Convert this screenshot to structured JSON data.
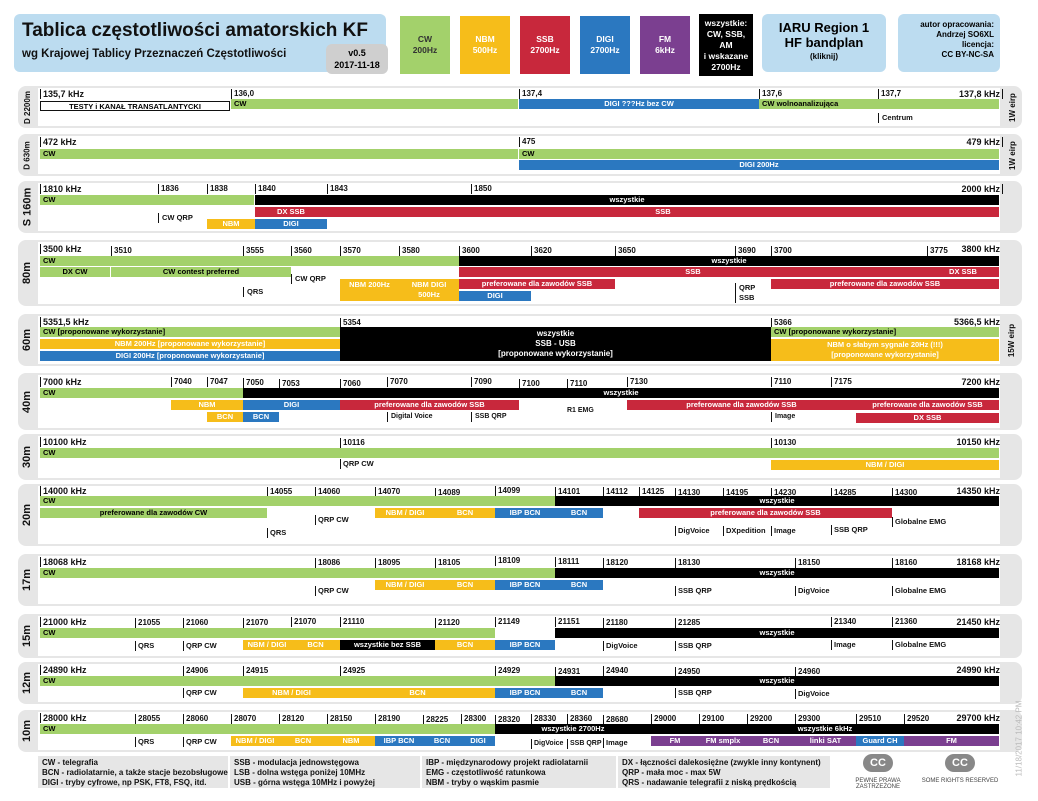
{
  "header": {
    "title": "Tablica częstotliwości amatorskich KF",
    "subtitle": "wg Krajowej Tablicy Przeznaczeń Częstotliwości",
    "version": "v0.5",
    "date": "2017-11-18",
    "legend": [
      {
        "label": "CW",
        "sub": "200Hz",
        "color": "#a3d16b",
        "dark": true
      },
      {
        "label": "NBM",
        "sub": "500Hz",
        "color": "#f6bd1a",
        "dark": false
      },
      {
        "label": "SSB",
        "sub": "2700Hz",
        "color": "#c8283c",
        "dark": false
      },
      {
        "label": "DIGI",
        "sub": "2700Hz",
        "color": "#2b78c0",
        "dark": false
      },
      {
        "label": "FM",
        "sub": "6kHz",
        "color": "#7b3f90",
        "dark": false
      },
      {
        "label": "wszystkie: CW, SSB, AM",
        "sub": "i wskazane 2700Hz",
        "color": "#000000",
        "dark": false
      }
    ],
    "iaru": {
      "line1": "IARU Region 1",
      "line2": "HF bandplan",
      "link": "(kliknij)"
    },
    "author": [
      "autor opracowania:",
      "Andrzej SO6XL",
      "licencja:",
      "CC BY-NC-SA"
    ]
  },
  "colors": {
    "cw": "#a3d16b",
    "nbm": "#f6bd1a",
    "ssb": "#c8283c",
    "digi": "#2b78c0",
    "fm": "#7b3f90",
    "all": "#000000",
    "band_bg": "#e6e6e6"
  },
  "chart_data": {
    "type": "table",
    "bands": [
      {
        "name": "D 2200m",
        "side": "1W eirp",
        "edges": {
          "start": "135,7 kHz",
          "end": "137,8 kHz"
        },
        "marks": [
          "136,0",
          "137,4",
          "137,6",
          "137,7"
        ],
        "segments": [
          "TESTY i KANAŁ TRANSATLANTYCKI",
          "CW",
          "DIGI ???Hz bez CW",
          "CW wolnoanalizująca",
          "Centrum"
        ]
      },
      {
        "name": "D 630m",
        "side": "1W eirp",
        "edges": {
          "start": "472 kHz",
          "end": "479 kHz"
        },
        "marks": [
          "475"
        ],
        "segments": [
          "CW",
          "CW",
          "DIGI 200Hz"
        ]
      },
      {
        "name": "S 160m",
        "edges": {
          "start": "1810 kHz",
          "end": "2000 kHz"
        },
        "marks": [
          "1836",
          "1838",
          "1840",
          "1843",
          "1850"
        ],
        "segments": [
          "CW",
          "wszystkie",
          "DX SSB",
          "SSB",
          "CW QRP",
          "NBM",
          "DIGI"
        ]
      },
      {
        "name": "80m",
        "edges": {
          "start": "3500 kHz",
          "end": "3800 kHz"
        },
        "marks": [
          "3510",
          "3555",
          "3560",
          "3570",
          "3580",
          "3600",
          "3620",
          "3650",
          "3690",
          "3700",
          "3775"
        ],
        "segments": [
          "CW",
          "wszystkie",
          "DX CW",
          "CW contest preferred",
          "SSB",
          "DX SSB",
          "CW QRP",
          "NBM 200Hz",
          "NBM DIGI 500Hz",
          "preferowane dla zawodów SSB",
          "QRP SSB",
          "preferowane dla zawodów SSB",
          "QRS",
          "DIGI"
        ]
      },
      {
        "name": "60m",
        "side": "15W eirp",
        "edges": {
          "start": "5351,5 kHz",
          "end": "5366,5 kHz"
        },
        "marks": [
          "5354",
          "5366"
        ],
        "segments": [
          "CW [proponowane wykorzystanie]",
          "NBM 200Hz [proponowane wykorzystanie]",
          "DIGI 200Hz [proponowane wykorzystanie]",
          "wszystkie",
          "SSB - USB",
          "[proponowane wykorzystanie]",
          "CW [proponowane wykorzystanie]",
          "NBM o słabym sygnale 20Hz (!!!)",
          "[proponowane wykorzystanie]"
        ]
      },
      {
        "name": "40m",
        "edges": {
          "start": "7000 kHz",
          "end": "7200 kHz"
        },
        "marks": [
          "7040",
          "7047",
          "7050",
          "7053",
          "7060",
          "7070",
          "7090",
          "7100",
          "7110",
          "7130",
          "7110",
          "7175"
        ],
        "segments": [
          "CW",
          "wszystkie",
          "NBM",
          "DIGI",
          "preferowane dla zawodów SSB",
          "preferowane dla zawodów SSB",
          "preferowane dla zawodów SSB",
          "BCN",
          "BCN",
          "Digital Voice",
          "SSB QRP",
          "R1 EMG",
          "Image",
          "DX SSB"
        ]
      },
      {
        "name": "30m",
        "edges": {
          "start": "10100 kHz",
          "end": "10150 kHz"
        },
        "marks": [
          "10116",
          "10130"
        ],
        "segments": [
          "CW",
          "QRP CW",
          "NBM / DIGI"
        ]
      },
      {
        "name": "20m",
        "edges": {
          "start": "14000 kHz",
          "end": "14350 kHz"
        },
        "marks": [
          "14055",
          "14060",
          "14070",
          "14089",
          "14099",
          "14101",
          "14112",
          "14125",
          "14130",
          "14195",
          "14230",
          "14285",
          "14300"
        ],
        "segments": [
          "CW",
          "wszystkie",
          "preferowane dla zawodów CW",
          "QRP CW",
          "NBM / DIGI",
          "BCN",
          "IBP BCN",
          "BCN",
          "preferowane dla zawodów SSB",
          "Globalne EMG",
          "QRS",
          "DigVoice",
          "DXpedition",
          "Image",
          "SSB QRP"
        ]
      },
      {
        "name": "17m",
        "edges": {
          "start": "18068 kHz",
          "end": "18168 kHz"
        },
        "marks": [
          "18086",
          "18095",
          "18105",
          "18109",
          "18111",
          "18120",
          "18130",
          "18150",
          "18160"
        ],
        "segments": [
          "CW",
          "wszystkie",
          "QRP CW",
          "NBM / DIGI",
          "BCN",
          "IBP BCN",
          "BCN",
          "SSB QRP",
          "DigVoice",
          "Globalne EMG"
        ]
      },
      {
        "name": "15m",
        "edges": {
          "start": "21000 kHz",
          "end": "21450 kHz"
        },
        "marks": [
          "21055",
          "21060",
          "21070",
          "21070",
          "21110",
          "21120",
          "21149",
          "21151",
          "21180",
          "21285",
          "21340",
          "21360"
        ],
        "segments": [
          "CW",
          "wszystkie",
          "QRS",
          "QRP CW",
          "NBM / DIGI",
          "BCN",
          "wszystkie bez SSB",
          "BCN",
          "IBP BCN",
          "DigVoice",
          "SSB QRP",
          "Image",
          "Globalne EMG"
        ]
      },
      {
        "name": "12m",
        "edges": {
          "start": "24890 kHz",
          "end": "24990 kHz"
        },
        "marks": [
          "24906",
          "24915",
          "24925",
          "24929",
          "24931",
          "24940",
          "24950",
          "24960"
        ],
        "segments": [
          "CW",
          "wszystkie",
          "QRP CW",
          "NBM / DIGI",
          "BCN",
          "IBP BCN",
          "BCN",
          "SSB QRP",
          "DigVoice"
        ]
      },
      {
        "name": "10m",
        "edges": {
          "start": "28000 kHz",
          "end": "29700 kHz"
        },
        "marks": [
          "28055",
          "28060",
          "28070",
          "28120",
          "28150",
          "28190",
          "28225",
          "28300",
          "28320",
          "28330",
          "28360",
          "28680",
          "29000",
          "29100",
          "29200",
          "29300",
          "29510",
          "29520"
        ],
        "segments": [
          "CW",
          "wszystkie 2700Hz",
          "wszystkie 6kHz",
          "QRS",
          "QRP CW",
          "NBM / DIGI",
          "BCN",
          "NBM",
          "IBP BCN",
          "BCN",
          "DIGI",
          "DigVoice",
          "SSB QRP",
          "Image",
          "FM",
          "FM smplx",
          "BCN",
          "linki SAT",
          "Guard CH",
          "FM"
        ]
      }
    ]
  },
  "footer": {
    "col1": [
      "CW - telegrafia",
      "BCN - radiolatarnie, a także stacje bezobsługowe",
      "DIGI - tryby cyfrowe, np PSK, FT8, FSQ, itd."
    ],
    "col2": [
      "SSB - modulacja jednowstęgowa",
      "LSB - dolna wstęga poniżej 10MHz",
      "USB - górna wstęga 10MHz i powyżej"
    ],
    "col3": [
      "IBP - międzynarodowy projekt radiolatarnii",
      "EMG - częstotliwość ratunkowa",
      "NBM - tryby o wąskim pasmie"
    ],
    "col4": [
      "DX - łączności dalekosiężne (zwykle inny kontynent)",
      "QRP - mała moc - max 5W",
      "QRS - nadawanie telegrafii z niską prędkością"
    ],
    "cc1": "PEWNE PRAWA ZASTRZEŻONE",
    "cc2": "SOME RIGHTS RESERVED",
    "cc_logo": "CC",
    "stamp": "11/18/2017 10:42 PM"
  }
}
